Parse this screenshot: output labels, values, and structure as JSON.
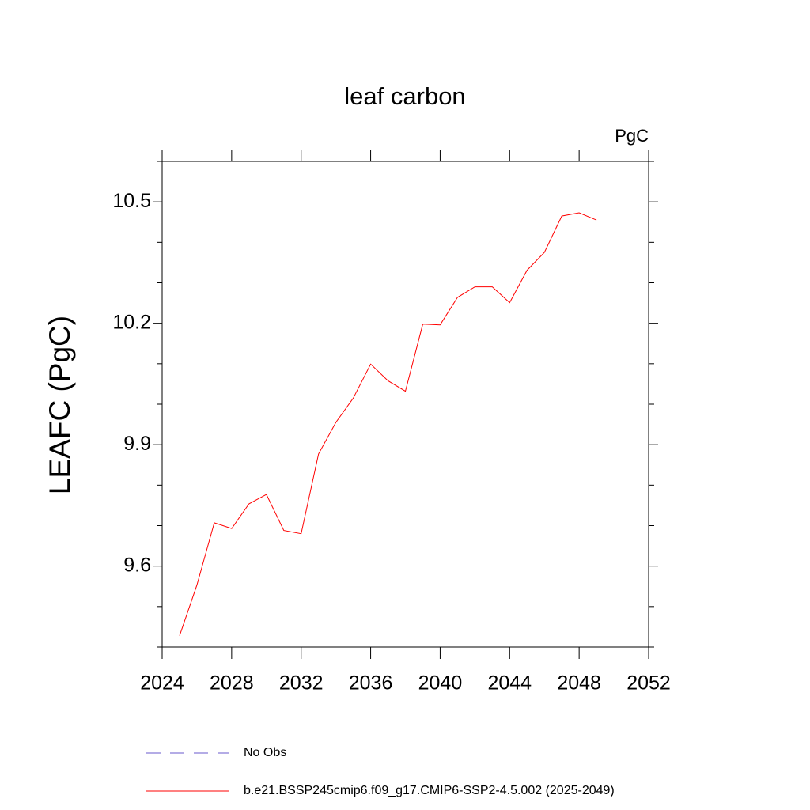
{
  "chart_data": {
    "type": "line",
    "title": "leaf carbon",
    "units": "PgC",
    "y_label": "LEAFC  (PgC)",
    "x": [
      2025,
      2026,
      2027,
      2028,
      2029,
      2030,
      2031,
      2032,
      2033,
      2034,
      2035,
      2036,
      2037,
      2038,
      2039,
      2040,
      2041,
      2042,
      2043,
      2044,
      2045,
      2046,
      2047,
      2048,
      2049
    ],
    "series": [
      {
        "name": "No Obs",
        "color": "#6a5acd",
        "dash": true,
        "values": [
          null,
          null,
          null,
          null,
          null,
          null,
          null,
          null,
          null,
          null,
          null,
          null,
          null,
          null,
          null,
          null,
          null,
          null,
          null,
          null,
          null,
          null,
          null,
          null,
          null
        ]
      },
      {
        "name": "b.e21.BSSP245cmip6.f09_g17.CMIP6-SSP2-4.5.002 (2025-2049)",
        "color": "#ff0000",
        "dash": false,
        "values": [
          9.428,
          9.553,
          9.707,
          9.693,
          9.754,
          9.777,
          9.688,
          9.68,
          9.877,
          9.955,
          10.015,
          10.099,
          10.058,
          10.032,
          10.198,
          10.196,
          10.264,
          10.29,
          10.29,
          10.251,
          10.331,
          10.375,
          10.465,
          10.473,
          10.455
        ]
      }
    ],
    "xlim": [
      2024,
      2052
    ],
    "xticks": [
      2024,
      2028,
      2032,
      2036,
      2040,
      2044,
      2048,
      2052
    ],
    "ylim": [
      9.4,
      10.6
    ],
    "yticks": [
      9.6,
      9.9,
      10.2,
      10.5
    ],
    "yminorticks": [
      9.4,
      9.5,
      9.7,
      9.8,
      10.0,
      10.1,
      10.3,
      10.4,
      10.6
    ]
  }
}
